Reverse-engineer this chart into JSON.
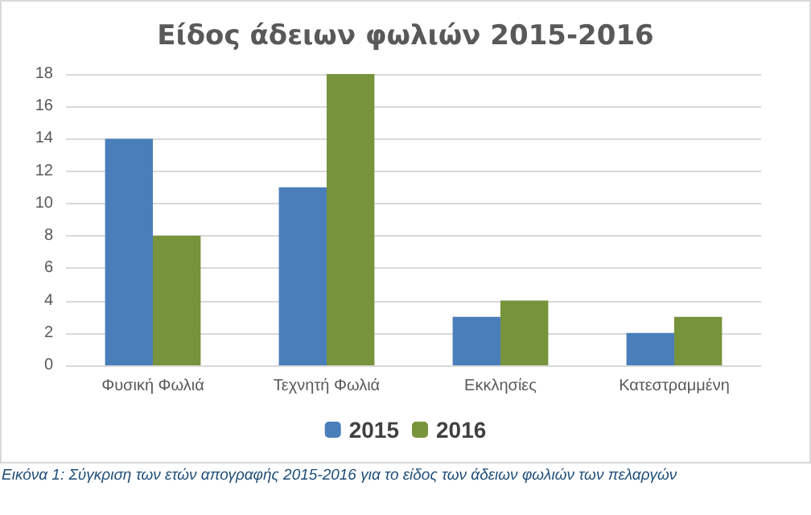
{
  "chart_data": {
    "type": "bar",
    "title": "Είδος άδειων φωλιών 2015-2016",
    "categories": [
      "Φυσική Φωλιά",
      "Τεχνητή Φωλιά",
      "Εκκλησίες",
      "Κατεστραμμένη"
    ],
    "series": [
      {
        "name": "2015",
        "color": "#4a7ebb",
        "values": [
          14,
          11,
          3,
          2
        ]
      },
      {
        "name": "2016",
        "color": "#77933c",
        "values": [
          8,
          18,
          4,
          3
        ]
      }
    ],
    "ylim": [
      0,
      18
    ],
    "yticks": [
      0,
      2,
      4,
      6,
      8,
      10,
      12,
      14,
      16,
      18
    ],
    "grid": "y",
    "legend": "bottom",
    "annotations": [
      "Εικόνα 1: Σύγκριση των ετών απογραφής 2015-2016 για το είδος των άδειων φωλιών των πελαργών"
    ]
  }
}
